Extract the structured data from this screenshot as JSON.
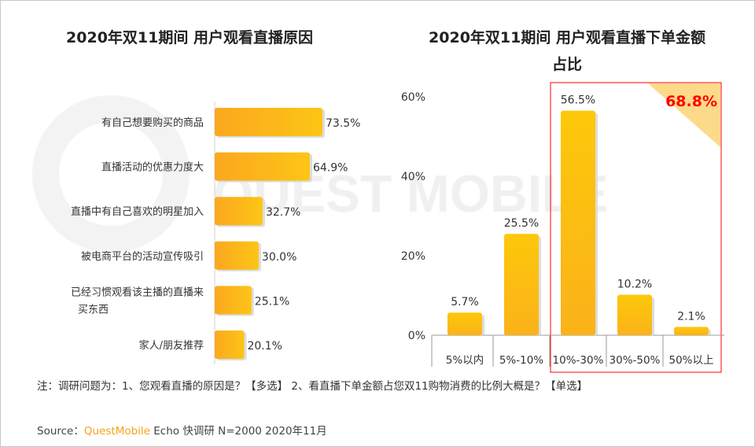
{
  "chart_data": [
    {
      "type": "bar",
      "orientation": "horizontal",
      "title": "2020年双11期间 用户观看直播原因",
      "categories": [
        "有自己想要购买的商品",
        "直播活动的优惠力度大",
        "直播中有自己喜欢的明星加入",
        "被电商平台的活动宣传吸引",
        "已经习惯观看该主播的直播来买东西",
        "家人/朋友推荐"
      ],
      "category_lines": [
        [
          "有自己想要购买的商品"
        ],
        [
          "直播活动的优惠力度大"
        ],
        [
          "直播中有自己喜欢的明星加入"
        ],
        [
          "被电商平台的活动宣传吸引"
        ],
        [
          "已经习惯观看该主播的直播来",
          "买东西"
        ],
        [
          "家人/朋友推荐"
        ]
      ],
      "values": [
        73.5,
        64.9,
        32.7,
        30.0,
        25.1,
        20.1
      ],
      "labels": [
        "73.5%",
        "64.9%",
        "32.7%",
        "30.0%",
        "25.1%",
        "20.1%"
      ],
      "bar_color": "#fbb91a"
    },
    {
      "type": "bar",
      "title": "2020年双11期间 用户观看直播下单金额占比",
      "title_lines": [
        "2020年双11期间 用户观看直播下单金额",
        "占比"
      ],
      "categories": [
        "5%以内",
        "5%-10%",
        "10%-30%",
        "30%-50%",
        "50%以上"
      ],
      "values": [
        5.7,
        25.5,
        56.5,
        10.2,
        2.1
      ],
      "labels": [
        "5.7%",
        "25.5%",
        "56.5%",
        "10.2%",
        "2.1%"
      ],
      "ylim": [
        0,
        60
      ],
      "yticks": [
        "0%",
        "20%",
        "40%",
        "60%"
      ],
      "ytick_values": [
        0,
        20,
        40,
        60
      ],
      "highlight": {
        "categories": [
          "10%-30%",
          "30%-50%",
          "50%以上"
        ],
        "total": "68.8%",
        "border_color": "#ff0000",
        "total_color": "#ff0000",
        "corner_color": "#fdd98a"
      },
      "bar_color": "#fcc30a",
      "grid": false
    }
  ],
  "watermark": "QUEST MOBILE",
  "note": "注：调研问题为：1、您观看直播的原因是？【多选】 2、看直播下单金额占您双11购物消费的比例大概是？【单选】",
  "source": {
    "prefix": "Source：",
    "brand": "QuestMobile",
    "suffix": " Echo 快调研 N=2000 2020年11月"
  }
}
